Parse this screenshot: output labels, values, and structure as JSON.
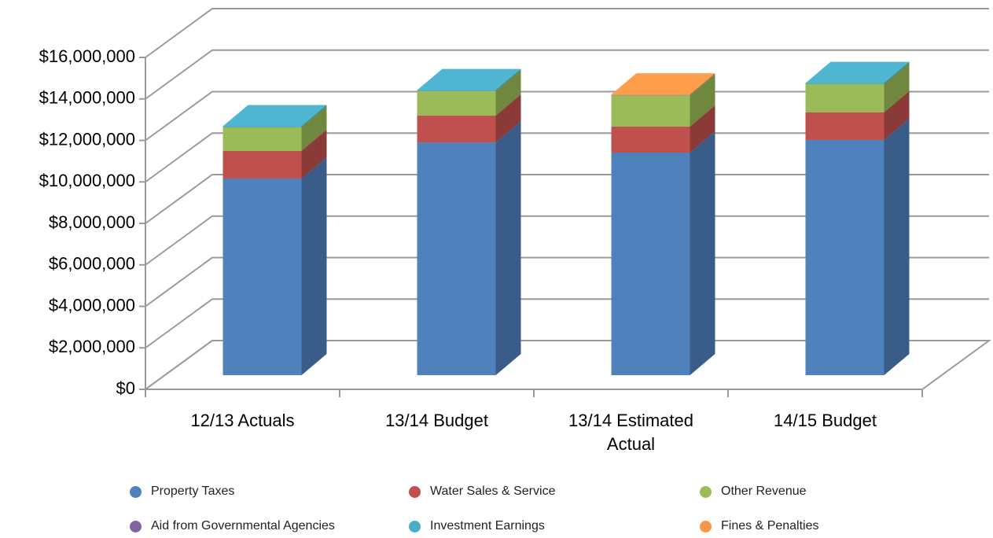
{
  "chart_data": {
    "type": "bar3d_stacked",
    "categories": [
      "12/13 Actuals",
      "13/14 Budget",
      "13/14 Estimated Actual",
      "14/15 Budget"
    ],
    "series": [
      {
        "name": "Property Taxes",
        "color": "#4f81bd",
        "values": [
          9480000,
          11220000,
          10730000,
          11340000
        ]
      },
      {
        "name": "Water Sales & Service",
        "color": "#c0504d",
        "values": [
          1330000,
          1290000,
          1250000,
          1330000
        ]
      },
      {
        "name": "Other Revenue",
        "color": "#9bbb59",
        "values": [
          1140000,
          1180000,
          1480000,
          1360000
        ]
      },
      {
        "name": "Aid from Governmental Agencies",
        "color": "#8064a2",
        "values": [
          0,
          0,
          0,
          0
        ]
      },
      {
        "name": "Investment Earnings",
        "color": "#4bacc6",
        "values": [
          50000,
          50000,
          20000,
          50000
        ]
      },
      {
        "name": "Fines & Penalties",
        "color": "#f79646",
        "values": [
          0,
          0,
          50000,
          0
        ]
      }
    ],
    "ylim": [
      0,
      16000000
    ],
    "yticks": [
      {
        "value": 0,
        "label": "$0"
      },
      {
        "value": 2000000,
        "label": "$2,000,000"
      },
      {
        "value": 4000000,
        "label": "$4,000,000"
      },
      {
        "value": 6000000,
        "label": "$6,000,000"
      },
      {
        "value": 8000000,
        "label": "$8,000,000"
      },
      {
        "value": 10000000,
        "label": "$10,000,000"
      },
      {
        "value": 12000000,
        "label": "$12,000,000"
      },
      {
        "value": 14000000,
        "label": "$14,000,000"
      },
      {
        "value": 16000000,
        "label": "$16,000,000"
      }
    ],
    "grid": true,
    "legend": "bottom"
  }
}
